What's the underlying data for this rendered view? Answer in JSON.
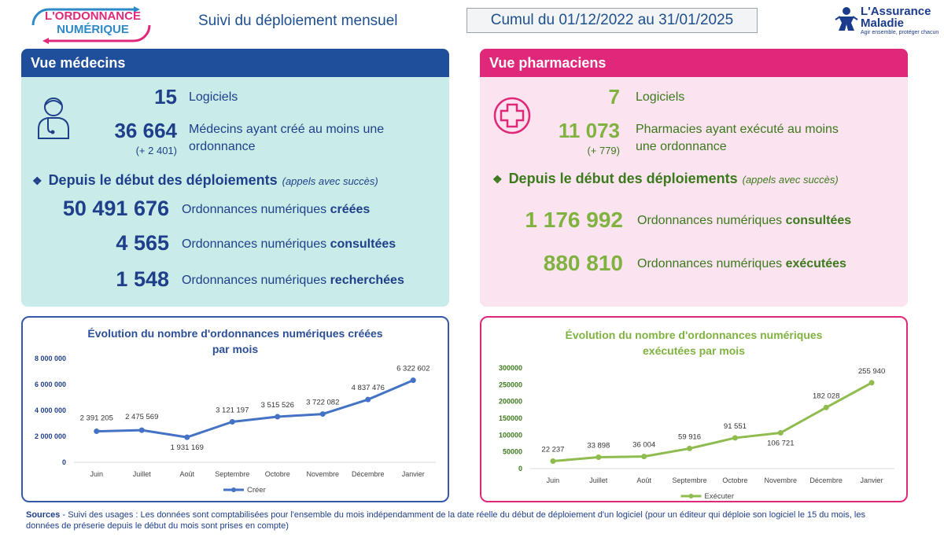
{
  "header": {
    "logo_line1": "L'ORDONNANCE",
    "logo_line2": "NUMÉRIQUE",
    "title": "Suivi du déploiement mensuel",
    "period": "Cumul du 01/12/2022 au 31/01/2025",
    "brand_name_1": "L'Assurance",
    "brand_name_2": "Maladie",
    "brand_tagline": "Agir ensemble, protéger chacun"
  },
  "medecins": {
    "title": "Vue médecins",
    "logiciels_value": "15",
    "logiciels_label": "Logiciels",
    "medecins_value": "36 664",
    "medecins_delta": "(+ 2 401)",
    "medecins_label_1": "Médecins ayant créé au moins une",
    "medecins_label_2": "ordonnance",
    "section_title": "Depuis le début des déploiements",
    "section_note": "(appels avec succès)",
    "stats": [
      {
        "value": "50 491 676",
        "label": "Ordonnances numériques ",
        "bold": "créées"
      },
      {
        "value": "4 565",
        "label": "Ordonnances numériques ",
        "bold": "consultées"
      },
      {
        "value": "1 548",
        "label": "Ordonnances numériques ",
        "bold": "recherchées"
      }
    ]
  },
  "pharmaciens": {
    "title": "Vue pharmaciens",
    "logiciels_value": "7",
    "logiciels_label": "Logiciels",
    "pharma_value": "11 073",
    "pharma_delta": "(+ 779)",
    "pharma_label_1": "Pharmacies ayant exécuté au moins",
    "pharma_label_2": "une ordonnance",
    "section_title": "Depuis le début des déploiements",
    "section_note": "(appels avec succès)",
    "stats": [
      {
        "value": "1 176 992",
        "label": "Ordonnances numériques ",
        "bold": "consultées"
      },
      {
        "value": "880 810",
        "label": "Ordonnances numériques ",
        "bold": "exécutées"
      }
    ]
  },
  "chart_data": [
    {
      "type": "line",
      "title": "Évolution du nombre d'ordonnances numériques créées par mois",
      "title_line1": "Évolution du nombre d'ordonnances numériques créées",
      "title_line2": "par mois",
      "categories": [
        "Juin",
        "Juillet",
        "Août",
        "Septembre",
        "Octobre",
        "Novembre",
        "Décembre",
        "Janvier"
      ],
      "series": [
        {
          "name": "Créer",
          "values": [
            2391205,
            2475569,
            1931169,
            3121197,
            3515526,
            3722082,
            4837476,
            6322602
          ]
        }
      ],
      "data_labels": [
        "2 391 205",
        "2 475 569",
        "1 931 169",
        "3 121 197",
        "3 515 526",
        "3 722 082",
        "4 837 476",
        "6 322 602"
      ],
      "yticks": [
        "0",
        "2 000 000",
        "4 000 000",
        "6 000 000",
        "8 000 000"
      ],
      "ylim": [
        0,
        8000000
      ],
      "grid": false,
      "legend": "bottom",
      "color": "#4472c4"
    },
    {
      "type": "line",
      "title": "Évolution du nombre d'ordonnances numériques exécutées par mois",
      "title_line1": "Évolution du nombre d'ordonnances numériques",
      "title_line2": "exécutées par mois",
      "categories": [
        "Juin",
        "Juillet",
        "Août",
        "Septembre",
        "Octobre",
        "Novembre",
        "Décembre",
        "Janvier"
      ],
      "series": [
        {
          "name": "Exécuter",
          "values": [
            22237,
            33898,
            36004,
            59916,
            91551,
            106721,
            182028,
            255940
          ]
        }
      ],
      "data_labels": [
        "22 237",
        "33 898",
        "36 004",
        "59 916",
        "91 551",
        "106 721",
        "182 028",
        "255 940"
      ],
      "yticks": [
        "0",
        "50000",
        "100000",
        "150000",
        "200000",
        "250000",
        "300000"
      ],
      "ylim": [
        0,
        300000
      ],
      "grid": false,
      "legend": "bottom",
      "color": "#8fbc4f"
    }
  ],
  "sources": {
    "label": "Sources",
    "text": " - Suivi des usages : Les données sont comptabilisées pour l'ensemble du mois indépendamment de la date réelle du début de déploiement d'un logiciel (pour un éditeur qui déploie son logiciel le 15 du mois, les données de préserie depuis le début du mois sont prises en compte)"
  },
  "colors": {
    "med_header": "#1f4f9a",
    "pha_header": "#e0287a",
    "med_panel": "#c9ece8",
    "pha_panel": "#fbe3ef",
    "med_text": "#1f3f8b",
    "pha_number": "#7fb23f"
  },
  "icons": [
    "doctor-icon",
    "pharmacy-cross-icon",
    "diamond-bullet-icon"
  ]
}
